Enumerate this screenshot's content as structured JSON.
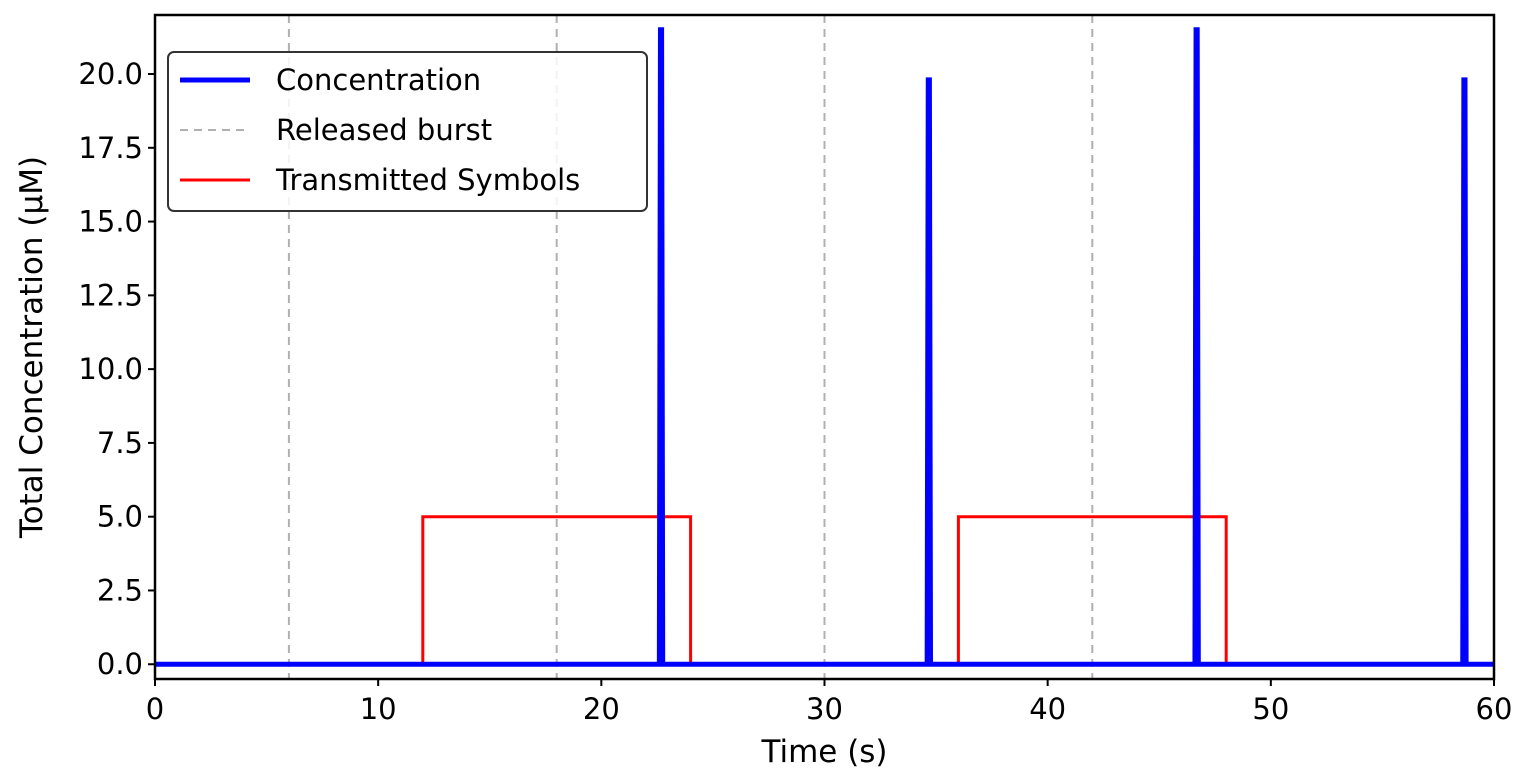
{
  "chart_data": {
    "type": "line",
    "xlabel": "Time (s)",
    "ylabel": "Total Concentration (μM)",
    "xlim": [
      0,
      60
    ],
    "ylim": [
      -0.5,
      22
    ],
    "xticks": [
      0,
      10,
      20,
      30,
      40,
      50,
      60
    ],
    "xtick_labels": [
      "0",
      "10",
      "20",
      "30",
      "40",
      "50",
      "60"
    ],
    "yticks": [
      0,
      2.5,
      5,
      7.5,
      10,
      12.5,
      15,
      17.5,
      20
    ],
    "ytick_labels": [
      "0.0",
      "2.5",
      "5.0",
      "7.5",
      "10.0",
      "12.5",
      "15.0",
      "17.5",
      "20.0"
    ],
    "grid": false,
    "legend_position": "upper-left",
    "series": [
      {
        "name": "Concentration",
        "style": "solid",
        "color": "#0000ff",
        "x": [
          0,
          22.6,
          22.65,
          22.7,
          22.75,
          34.6,
          34.65,
          34.7,
          34.75,
          46.6,
          46.65,
          46.7,
          46.75,
          58.6,
          58.65,
          58.7,
          58.75,
          60
        ],
        "y": [
          0,
          0,
          21.5,
          21.5,
          0,
          0,
          19.8,
          19.8,
          0,
          0,
          21.5,
          21.5,
          0,
          0,
          19.8,
          19.8,
          0,
          0
        ]
      },
      {
        "name": "Released burst",
        "style": "dashed",
        "color": "#b0b0b0",
        "kind": "vlines",
        "x": [
          6,
          18,
          30,
          42
        ]
      },
      {
        "name": "Transmitted Symbols",
        "style": "solid",
        "color": "#ff0000",
        "x": [
          0,
          12,
          12,
          24,
          24,
          36,
          36,
          48,
          48
        ],
        "y": [
          0,
          0,
          5,
          5,
          0,
          0,
          5,
          5,
          0
        ]
      }
    ]
  }
}
